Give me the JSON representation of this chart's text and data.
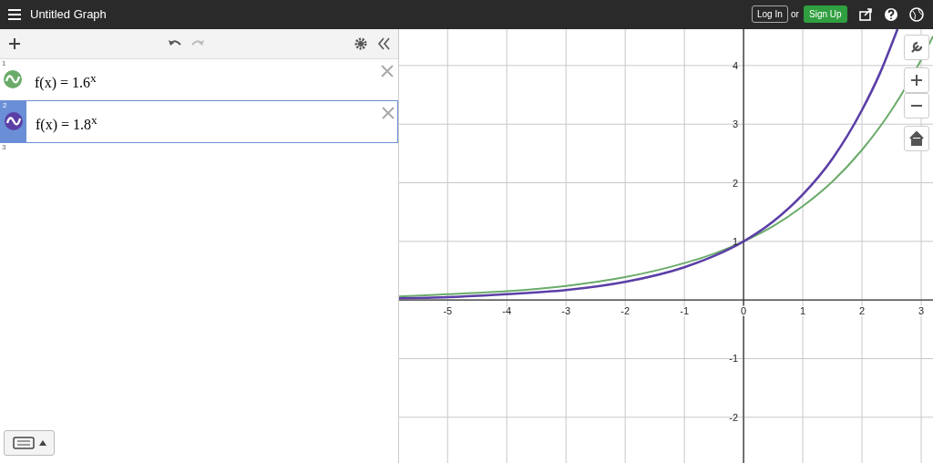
{
  "chart_data": {
    "type": "line",
    "title": "Untitled Graph",
    "annotations": [
      "Log In",
      "or",
      "Sign Up",
      "1",
      "2",
      "3"
    ],
    "xlim": [
      -5.82,
      3.2
    ],
    "ylim": [
      -2.78,
      4.62
    ],
    "xticks": [
      -5,
      -4,
      -3,
      -2,
      -1,
      0,
      1,
      2,
      3
    ],
    "yticks": [
      -2,
      -1,
      {
        "value": 0,
        "label": null
      },
      1,
      2,
      3,
      4
    ],
    "grid": true,
    "legend": "left",
    "marker": "none",
    "line_style": "solid",
    "series": [
      {
        "name": "f(x) = 1.6$^{x}$",
        "color": "#6aab6a",
        "x": [
          -5.82,
          -5,
          -4,
          -3,
          -2,
          -1,
          -0.5,
          0,
          0.5,
          1,
          1.5,
          2,
          2.5,
          3,
          3.2
        ],
        "values": [
          0.06,
          0.1,
          0.15,
          0.24,
          0.39,
          0.63,
          0.79,
          1,
          1.26,
          1.6,
          2.02,
          2.56,
          3.24,
          4.1,
          4.5
        ]
      },
      {
        "name": "f(x) = 1.8$^{x}$",
        "color": "#5b3fa6",
        "x": [
          -5.82,
          -5,
          -4,
          -3,
          -2,
          -1,
          -0.5,
          0,
          0.5,
          1,
          1.5,
          2,
          2.3,
          2.6
        ],
        "values": [
          0.03,
          0.05,
          0.1,
          0.17,
          0.31,
          0.56,
          0.75,
          1,
          1.34,
          1.8,
          2.41,
          3.24,
          3.86,
          4.62
        ]
      }
    ]
  }
}
